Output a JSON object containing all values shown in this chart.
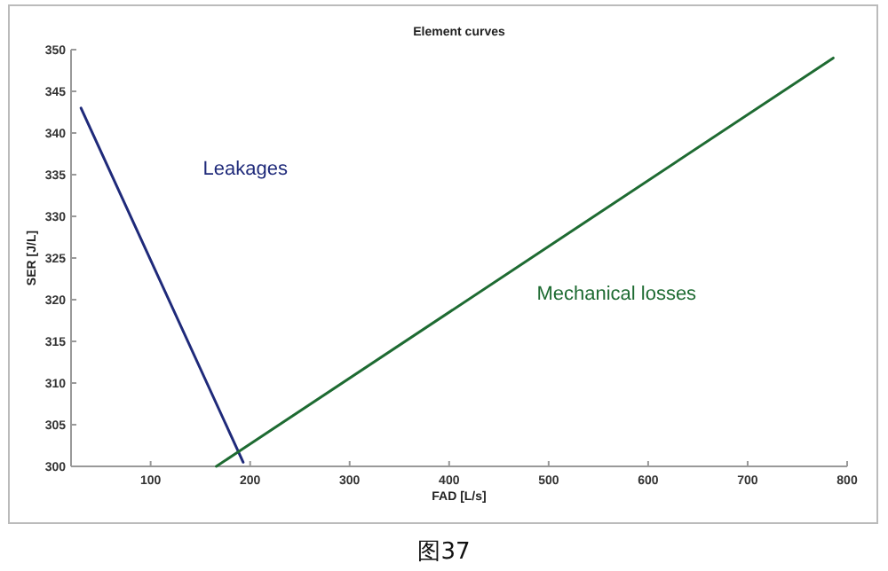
{
  "chart_data": {
    "type": "line",
    "title": "Element curves",
    "xlabel": "FAD [L/s]",
    "ylabel": "SER [J/L]",
    "series": [
      {
        "name": "Leakages",
        "color": "#1f2a7a",
        "x": [
          30,
          193
        ],
        "values": [
          343,
          300.5
        ]
      },
      {
        "name": "Mechanical losses",
        "color": "#1e6b32",
        "x": [
          166,
          786
        ],
        "values": [
          300,
          349
        ]
      }
    ],
    "xlim": [
      20,
      800
    ],
    "ylim": [
      300,
      350
    ],
    "xticks": [
      100,
      200,
      300,
      400,
      500,
      600,
      700,
      800
    ],
    "yticks": [
      300,
      305,
      310,
      315,
      320,
      325,
      330,
      335,
      340,
      345,
      350
    ],
    "grid": false,
    "legend": false,
    "marker": "none",
    "line_style": "solid",
    "annotations": [
      "图37"
    ]
  }
}
